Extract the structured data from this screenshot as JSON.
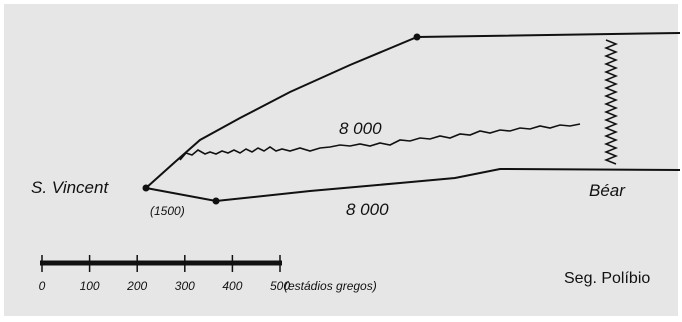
{
  "map": {
    "colors": {
      "background": "#e6e6e6",
      "ink": "#111111"
    },
    "places": {
      "start": "S. Vincent",
      "end": "Béar"
    },
    "annotations": {
      "origin_distance": "(1500)",
      "upper_distance": "8 000",
      "lower_distance": "8 000"
    },
    "scale": {
      "ticks": [
        "0",
        "100",
        "200",
        "300",
        "400",
        "500"
      ],
      "unit": "(estádios gregos)"
    },
    "source": "Seg. Políbio"
  }
}
